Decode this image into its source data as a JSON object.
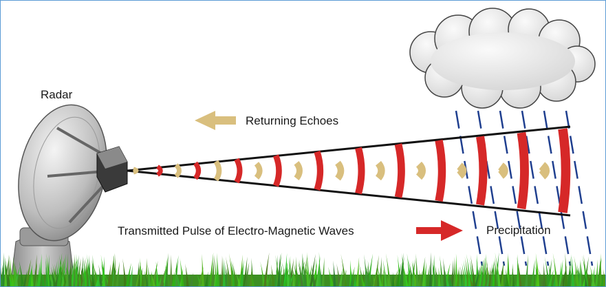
{
  "labels": {
    "radar": "Radar",
    "returning_echoes": "Returning Echoes",
    "transmitted_pulse": "Transmitted Pulse of Electro-Magnetic Waves",
    "precipitation": "Precipitation"
  },
  "colors": {
    "frame_border": "#5b9bd5",
    "transmitted_wave": "#d62828",
    "echo_wave": "#d9bf7e",
    "rain": "#1f3f8f",
    "beam_outline": "#111111",
    "cloud": "#dcdcdc",
    "grass": "#4caf2a"
  },
  "icons": {
    "radar_dish": "radar-dish-icon",
    "cloud": "cloud-icon",
    "echo_arrow": "arrow-left-icon",
    "pulse_arrow": "arrow-right-icon"
  }
}
